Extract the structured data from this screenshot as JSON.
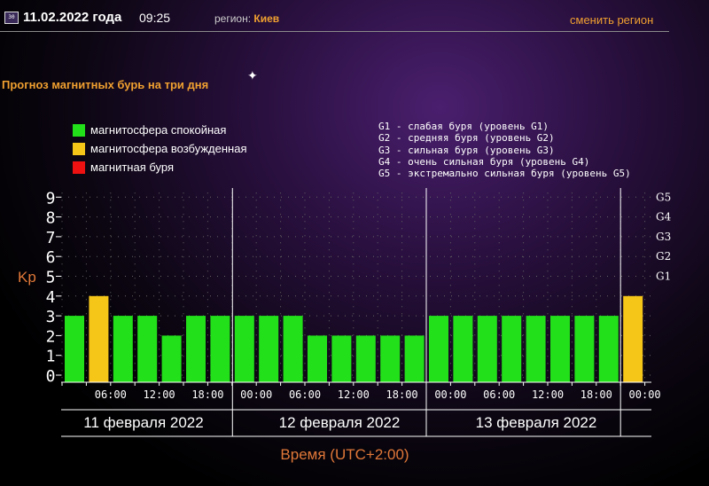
{
  "header": {
    "calendar_icon": "calendar-icon",
    "calendar_label": "30",
    "date": "11.02.2022 года",
    "time": "09:25",
    "region_label": "регион:",
    "region_value": "Киев",
    "change_region": "сменить регион"
  },
  "title": "Прогноз магнитных бурь на три дня",
  "legend": [
    {
      "label": "магнитосфера спокойная",
      "color": "#22e11a"
    },
    {
      "label": "магнитосфера возбужденная",
      "color": "#f5c518"
    },
    {
      "label": "магнитная буря",
      "color": "#ee1111"
    }
  ],
  "g_legend": [
    "G1 - слабая буря (уровень G1)",
    "G2 - средняя буря (уровень G2)",
    "G3 - сильная буря (уровень G3)",
    "G4 - очень сильная буря (уровень G4)",
    "G5 - экстремально сильная буря (уровень G5)"
  ],
  "chart_data": {
    "type": "bar",
    "ylabel": "Kp",
    "ylim": [
      0,
      9
    ],
    "y_ticks": [
      "0",
      "1",
      "2",
      "3",
      "4",
      "5",
      "6",
      "7",
      "8",
      "9"
    ],
    "g_ticks": [
      {
        "label": "G1",
        "kp": 5
      },
      {
        "label": "G2",
        "kp": 6
      },
      {
        "label": "G3",
        "kp": 7
      },
      {
        "label": "G4",
        "kp": 8
      },
      {
        "label": "G5",
        "kp": 9
      }
    ],
    "x_ticks": [
      "06:00",
      "12:00",
      "18:00",
      "00:00",
      "06:00",
      "12:00",
      "18:00",
      "00:00",
      "06:00",
      "12:00",
      "18:00",
      "00:00"
    ],
    "days": [
      "11 февраля 2022",
      "12 февраля 2022",
      "13 февраля 2022"
    ],
    "xlabel": "Время (UTC+2:00)",
    "grid": true,
    "values": [
      3,
      4,
      3,
      3,
      2,
      3,
      3,
      3,
      3,
      3,
      2,
      2,
      2,
      2,
      2,
      3,
      3,
      3,
      3,
      3,
      3,
      3,
      3,
      4
    ],
    "colors": [
      "quiet",
      "active",
      "quiet",
      "quiet",
      "quiet",
      "quiet",
      "quiet",
      "quiet",
      "quiet",
      "quiet",
      "quiet",
      "quiet",
      "quiet",
      "quiet",
      "quiet",
      "quiet",
      "quiet",
      "quiet",
      "quiet",
      "quiet",
      "quiet",
      "quiet",
      "quiet",
      "active"
    ]
  }
}
